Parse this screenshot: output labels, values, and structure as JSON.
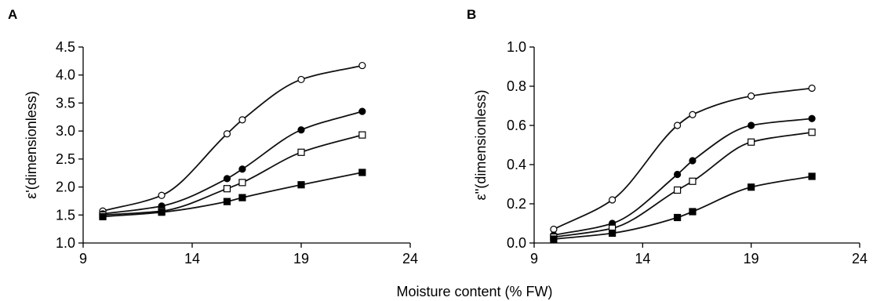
{
  "figure": {
    "shared_xlabel": "Moisture content (% FW)"
  },
  "chart_data": [
    {
      "panel": "A",
      "type": "line",
      "ylabel": "ε'(dimensionless)",
      "xlim": [
        9,
        24
      ],
      "ylim": [
        1.0,
        4.5
      ],
      "x_ticks": [
        "9",
        "14",
        "19",
        "24"
      ],
      "y_ticks": [
        "1.0",
        "1.5",
        "2.0",
        "2.5",
        "3.0",
        "3.5",
        "4.0",
        "4.5"
      ],
      "grid": false,
      "series": [
        {
          "marker": "open-circle",
          "x": [
            9.9,
            12.6,
            15.6,
            16.3,
            19.0,
            21.8
          ],
          "y": [
            1.57,
            1.85,
            2.95,
            3.2,
            3.92,
            4.17
          ]
        },
        {
          "marker": "filled-circle",
          "x": [
            9.9,
            12.6,
            15.6,
            16.3,
            19.0,
            21.8
          ],
          "y": [
            1.52,
            1.66,
            2.15,
            2.32,
            3.02,
            3.35
          ]
        },
        {
          "marker": "open-square",
          "x": [
            9.9,
            12.6,
            15.6,
            16.3,
            19.0,
            21.8
          ],
          "y": [
            1.5,
            1.57,
            1.97,
            2.08,
            2.62,
            2.93
          ]
        },
        {
          "marker": "filled-square",
          "x": [
            9.9,
            12.6,
            15.6,
            16.3,
            19.0,
            21.8
          ],
          "y": [
            1.47,
            1.55,
            1.74,
            1.81,
            2.04,
            2.26
          ]
        }
      ]
    },
    {
      "panel": "B",
      "type": "line",
      "ylabel": "ε''(dimensionless)",
      "xlim": [
        9,
        24
      ],
      "ylim": [
        0.0,
        1.0
      ],
      "x_ticks": [
        "9",
        "14",
        "19",
        "24"
      ],
      "y_ticks": [
        "0.0",
        "0.2",
        "0.4",
        "0.6",
        "0.8",
        "1.0"
      ],
      "grid": false,
      "series": [
        {
          "marker": "open-circle",
          "x": [
            9.9,
            12.6,
            15.6,
            16.3,
            19.0,
            21.8
          ],
          "y": [
            0.07,
            0.22,
            0.6,
            0.655,
            0.75,
            0.79
          ]
        },
        {
          "marker": "filled-circle",
          "x": [
            9.9,
            12.6,
            15.6,
            16.3,
            19.0,
            21.8
          ],
          "y": [
            0.04,
            0.1,
            0.35,
            0.42,
            0.6,
            0.635
          ]
        },
        {
          "marker": "open-square",
          "x": [
            9.9,
            12.6,
            15.6,
            16.3,
            19.0,
            21.8
          ],
          "y": [
            0.03,
            0.075,
            0.27,
            0.315,
            0.515,
            0.565
          ]
        },
        {
          "marker": "filled-square",
          "x": [
            9.9,
            12.6,
            15.6,
            16.3,
            19.0,
            21.8
          ],
          "y": [
            0.02,
            0.05,
            0.13,
            0.16,
            0.285,
            0.34
          ]
        }
      ]
    }
  ]
}
